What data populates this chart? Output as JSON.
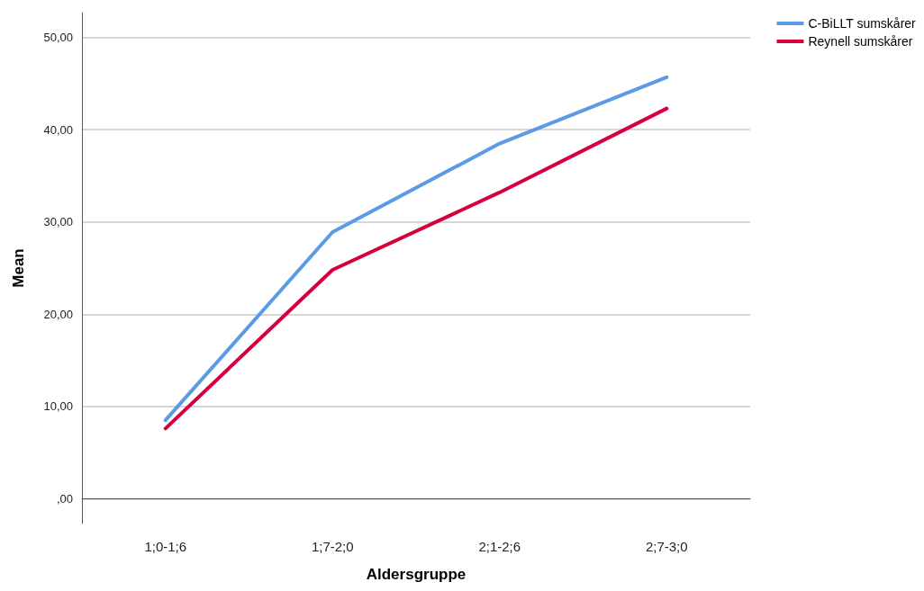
{
  "chart_data": {
    "type": "line",
    "xlabel": "Aldersgruppe",
    "ylabel": "Mean",
    "categories": [
      "1;0-1;6",
      "1;7-2;0",
      "2;1-2;6",
      "2;7-3;0"
    ],
    "series": [
      {
        "name": "C-BiLLT sumskårer",
        "color": "#5a9be6",
        "values": [
          8.5,
          28.9,
          38.5,
          45.7
        ]
      },
      {
        "name": "Reynell sumskårer",
        "color": "#d5003c",
        "values": [
          7.6,
          24.8,
          33.2,
          42.3
        ]
      }
    ],
    "ylim": [
      -2.7,
      52.7
    ],
    "yticks": [
      {
        "value": 0,
        "label": ",00"
      },
      {
        "value": 10,
        "label": "10,00"
      },
      {
        "value": 20,
        "label": "20,00"
      },
      {
        "value": 30,
        "label": "30,00"
      },
      {
        "value": 40,
        "label": "40,00"
      },
      {
        "value": 50,
        "label": "50,00"
      }
    ],
    "grid": "y",
    "legend": "top right",
    "marker": "none",
    "line_style": "solid"
  }
}
